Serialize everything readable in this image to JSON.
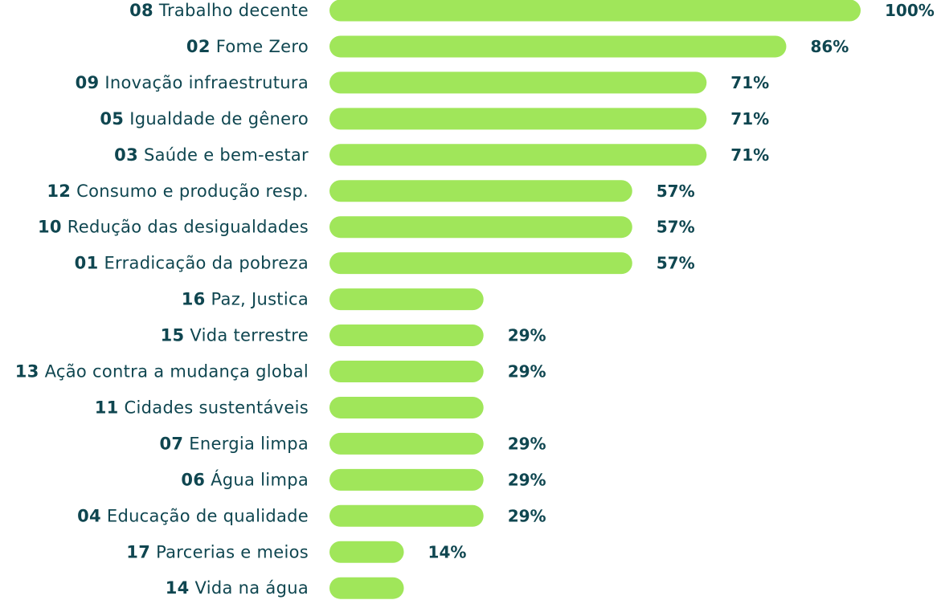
{
  "chart_data": {
    "type": "bar",
    "orientation": "horizontal",
    "xlim": [
      0,
      100
    ],
    "bar_color": "#a0e65a",
    "label_color": "#0f4650",
    "rows": [
      {
        "num": "08",
        "name": "Trabalho decente",
        "value": 100,
        "label": "100%"
      },
      {
        "num": "02",
        "name": "Fome Zero",
        "value": 86,
        "label": "86%"
      },
      {
        "num": "09",
        "name": "Inovação infraestrutura",
        "value": 71,
        "label": "71%"
      },
      {
        "num": "05",
        "name": "Igualdade de gênero",
        "value": 71,
        "label": "71%"
      },
      {
        "num": "03",
        "name": "Saúde e bem-estar",
        "value": 71,
        "label": "71%"
      },
      {
        "num": "12",
        "name": "Consumo e produção resp.",
        "value": 57,
        "label": "57%"
      },
      {
        "num": "10",
        "name": "Redução das desigualdades",
        "value": 57,
        "label": "57%"
      },
      {
        "num": "01",
        "name": "Erradicação da pobreza",
        "value": 57,
        "label": "57%"
      },
      {
        "num": "16",
        "name": "Paz, Justica",
        "value": 29,
        "label": ""
      },
      {
        "num": "15",
        "name": "Vida terrestre",
        "value": 29,
        "label": "29%"
      },
      {
        "num": "13",
        "name": "Ação contra a mudança global",
        "value": 29,
        "label": "29%"
      },
      {
        "num": "11",
        "name": "Cidades sustentáveis",
        "value": 29,
        "label": ""
      },
      {
        "num": "07",
        "name": "Energia limpa",
        "value": 29,
        "label": "29%"
      },
      {
        "num": "06",
        "name": "Água limpa",
        "value": 29,
        "label": "29%"
      },
      {
        "num": "04",
        "name": "Educação de qualidade",
        "value": 29,
        "label": "29%"
      },
      {
        "num": "17",
        "name": "Parcerias e meios",
        "value": 14,
        "label": "14%"
      },
      {
        "num": "14",
        "name": "Vida na água",
        "value": 14,
        "label": ""
      }
    ]
  }
}
